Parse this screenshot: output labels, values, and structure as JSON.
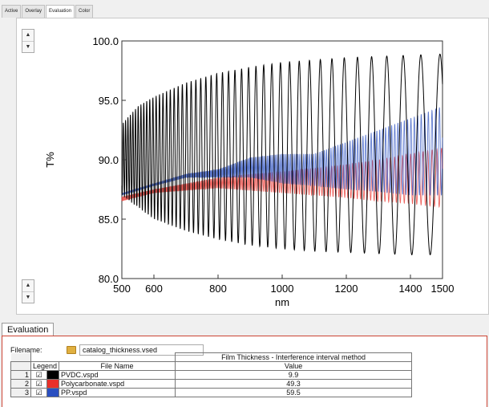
{
  "tabs": [
    "Active",
    "Overlay",
    "Evaluation",
    "Color"
  ],
  "active_tab": "Evaluation",
  "spin_up": "▲",
  "spin_down": "▼",
  "chart_data": {
    "type": "line",
    "xlabel": "nm",
    "ylabel": "T%",
    "xlim": [
      500,
      1500
    ],
    "ylim": [
      80,
      100
    ],
    "x_ticks": [
      500,
      600,
      800,
      1000,
      1200,
      1400,
      1500
    ],
    "y_ticks": [
      80.0,
      85.0,
      90.0,
      95.0,
      100.0
    ],
    "grid": false,
    "series": [
      {
        "name": "PVDC.vspd",
        "color": "#000000",
        "envelope_x": [
          500,
          550,
          600,
          700,
          800,
          900,
          1000,
          1100,
          1200,
          1300,
          1400,
          1500
        ],
        "upper": [
          93.0,
          94.5,
          95.3,
          96.5,
          97.3,
          97.8,
          98.2,
          98.4,
          98.6,
          98.7,
          98.8,
          98.9
        ],
        "lower": [
          87.0,
          86.0,
          85.0,
          84.0,
          83.3,
          82.8,
          82.5,
          82.3,
          82.2,
          82.1,
          82.0,
          82.0
        ]
      },
      {
        "name": "Polycarbonate.vspd",
        "color": "#e8302a",
        "envelope_x": [
          500,
          600,
          700,
          800,
          900,
          1000,
          1100,
          1200,
          1300,
          1400,
          1500
        ],
        "upper": [
          86.9,
          87.5,
          88.0,
          88.5,
          88.8,
          89.0,
          89.3,
          89.6,
          90.0,
          90.5,
          91.0
        ],
        "lower": [
          86.5,
          87.2,
          87.4,
          87.6,
          87.4,
          87.2,
          87.0,
          86.8,
          86.5,
          86.3,
          86.0
        ]
      },
      {
        "name": "PP.vspd",
        "color": "#2a4fc0",
        "envelope_x": [
          500,
          600,
          700,
          800,
          900,
          1000,
          1100,
          1200,
          1300,
          1400,
          1500
        ],
        "upper": [
          87.2,
          88.0,
          88.8,
          89.2,
          90.2,
          90.5,
          90.5,
          91.5,
          92.5,
          93.5,
          94.5
        ],
        "lower": [
          87.0,
          87.8,
          88.5,
          88.5,
          88.5,
          88.0,
          87.8,
          87.5,
          87.3,
          87.0,
          87.0
        ]
      }
    ]
  },
  "evaluation": {
    "tab_label": "Evaluation",
    "filename_label": "Filename:",
    "filename_value": "catalog_thickness.vsed",
    "method_header": "Film Thickness - Interference interval method",
    "col_legend": "Legend",
    "col_file": "File Name",
    "col_value": "Value",
    "rows": [
      {
        "num": "1",
        "check": "☑",
        "color": "#000000",
        "file": "PVDC.vspd",
        "value": "9.9"
      },
      {
        "num": "2",
        "check": "☑",
        "color": "#e8302a",
        "file": "Polycarbonate.vspd",
        "value": "49.3"
      },
      {
        "num": "3",
        "check": "☑",
        "color": "#2a4fc0",
        "file": "PP.vspd",
        "value": "59.5"
      }
    ]
  }
}
